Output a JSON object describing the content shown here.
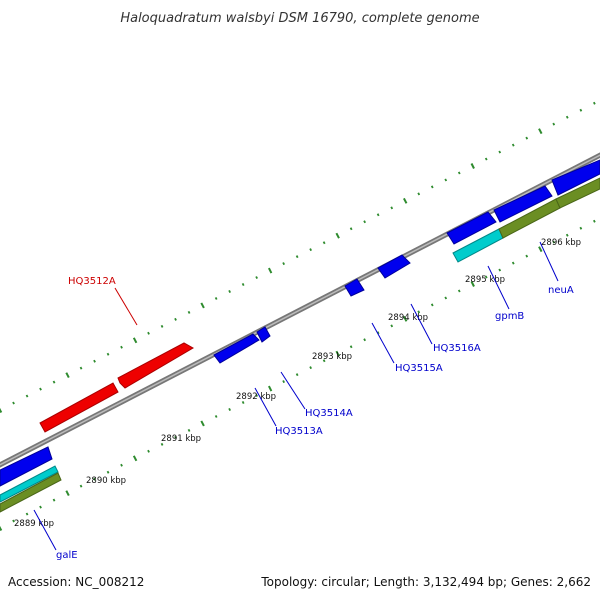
{
  "title": "Haloquadratum walsbyi DSM 16790, complete genome",
  "footer": {
    "accession": "Accession: NC_008212",
    "summary": "Topology: circular; Length: 3,132,494 bp; Genes: 2,662"
  },
  "ticks": [
    "2889 kbp",
    "2890 kbp",
    "2891 kbp",
    "2892 kbp",
    "2893 kbp",
    "2894 kbp",
    "2895 kbp",
    "2896 kbp"
  ],
  "genes": [
    {
      "name": "HQ3512A",
      "color": "#cc0000"
    },
    {
      "name": "HQ3513A",
      "color": "#0000cc"
    },
    {
      "name": "HQ3514A",
      "color": "#0000cc"
    },
    {
      "name": "HQ3515A",
      "color": "#0000cc"
    },
    {
      "name": "HQ3516A",
      "color": "#0000cc"
    },
    {
      "name": "gpmB",
      "color": "#0000cc"
    },
    {
      "name": "neuA",
      "color": "#0000cc"
    },
    {
      "name": "galE",
      "color": "#0000cc"
    }
  ],
  "colors": {
    "forward_cds": "#0000ee",
    "forward_rrna": "#ee0000",
    "reverse_cds": "#0000ee",
    "trna": "#00cccc",
    "gc_content": "#6b8e23",
    "backbone": "#888888",
    "tick": "#2e8b2e"
  }
}
